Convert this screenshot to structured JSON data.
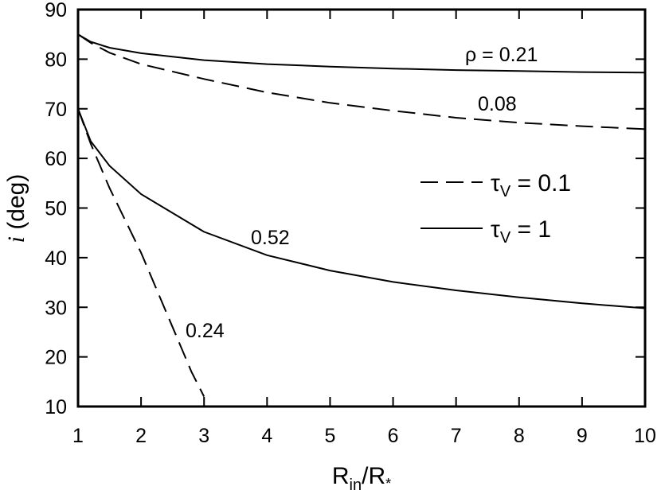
{
  "chart_data": {
    "type": "line",
    "xlabel": "R",
    "xlabel_sub": "in",
    "xlabel_rest": "/R",
    "xlabel_star": "*",
    "ylabel_italic": "i",
    "ylabel_rest": " (deg)",
    "xlim": [
      1,
      10
    ],
    "ylim": [
      10,
      90
    ],
    "xticks": [
      1,
      2,
      3,
      4,
      5,
      6,
      7,
      8,
      9,
      10
    ],
    "yticks": [
      10,
      20,
      30,
      40,
      50,
      60,
      70,
      80,
      90
    ],
    "grid": false,
    "legend_position": "right",
    "legend": [
      {
        "symbol": "τ",
        "sub": "V",
        "text": " = 0.1",
        "style": "dashed"
      },
      {
        "symbol": "τ",
        "sub": "V",
        "text": " = 1",
        "style": "solid"
      }
    ],
    "series": [
      {
        "label": "ρ = 0.21",
        "style": "solid",
        "x": [
          1,
          1.2,
          1.5,
          2,
          3,
          4,
          5,
          6,
          7,
          8,
          9,
          10
        ],
        "y": [
          85,
          83.5,
          82.3,
          81.2,
          79.8,
          79,
          78.5,
          78.1,
          77.8,
          77.6,
          77.4,
          77.3
        ]
      },
      {
        "label": "0.08",
        "style": "dashed",
        "x": [
          1,
          1.2,
          1.5,
          2,
          3,
          4,
          5,
          6,
          7,
          8,
          9,
          10
        ],
        "y": [
          85,
          83.3,
          81.3,
          79,
          76,
          73.3,
          71.2,
          69.6,
          68.2,
          67.2,
          66.5,
          65.9
        ]
      },
      {
        "label": "0.52",
        "style": "solid",
        "x": [
          1,
          1.2,
          1.5,
          2,
          3,
          4,
          5,
          6,
          7,
          8,
          9,
          10
        ],
        "y": [
          70,
          63.5,
          58.5,
          52.8,
          45.2,
          40.5,
          37.4,
          35.1,
          33.4,
          32,
          30.8,
          29.8
        ]
      },
      {
        "label": "0.24",
        "style": "dashed",
        "x": [
          1,
          1.2,
          1.5,
          2,
          2.5,
          2.8,
          3
        ],
        "y": [
          70,
          63,
          54,
          41,
          26,
          17,
          12
        ]
      }
    ]
  }
}
